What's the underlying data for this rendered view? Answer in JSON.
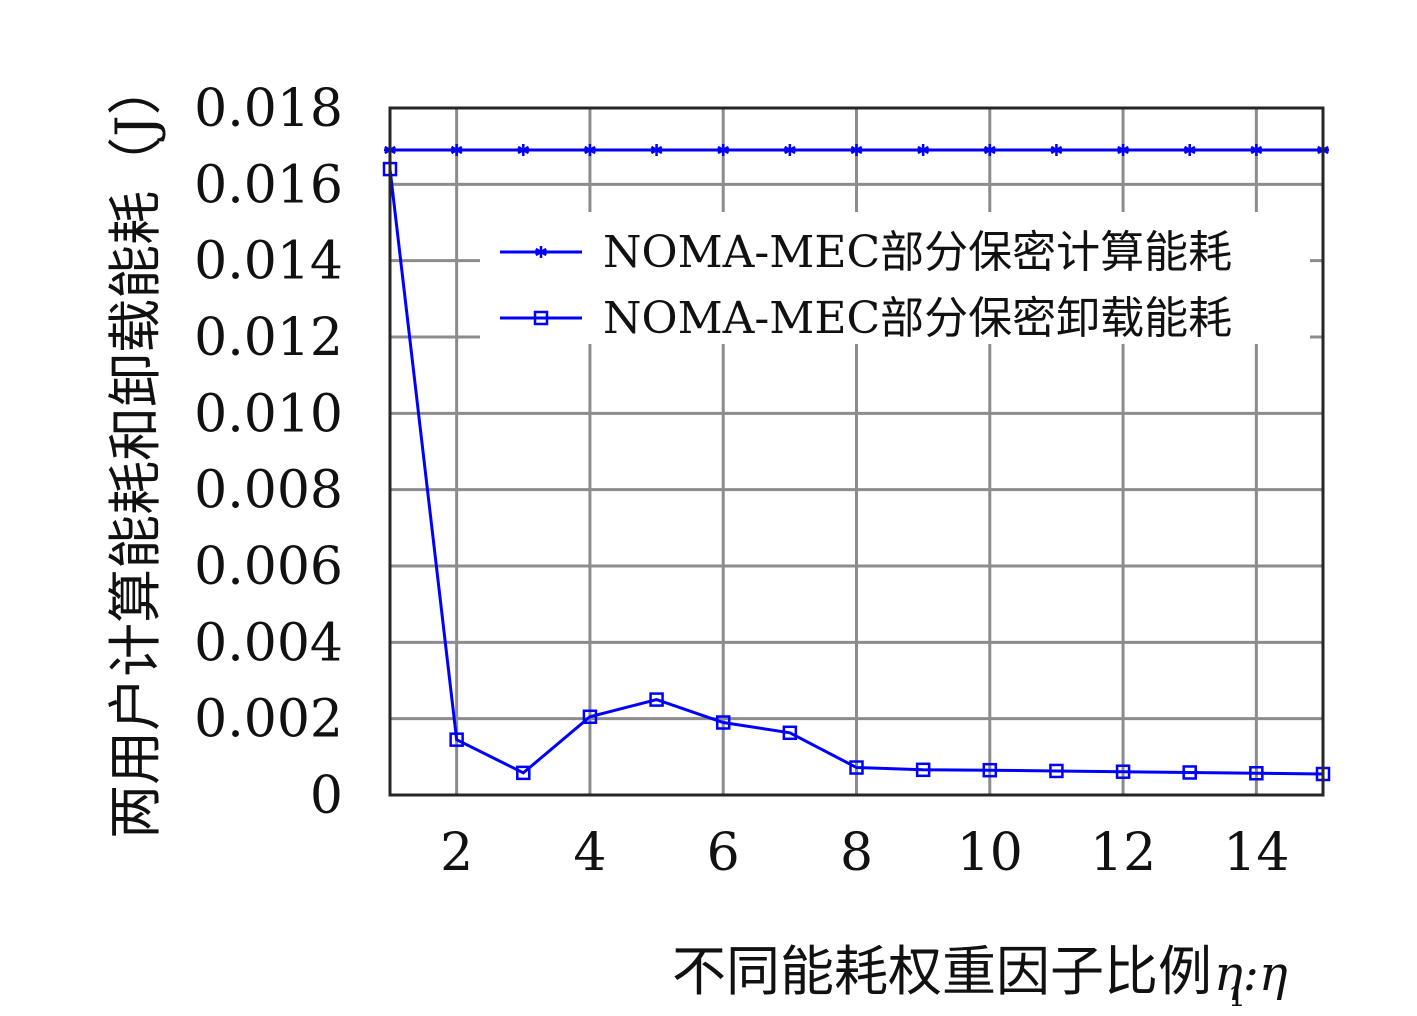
{
  "chart_data": {
    "type": "line",
    "x": [
      1,
      2,
      3,
      4,
      5,
      6,
      7,
      8,
      9,
      10,
      11,
      12,
      13,
      14,
      15
    ],
    "xticks": [
      "2",
      "4",
      "6",
      "8",
      "10",
      "12",
      "14"
    ],
    "yticks": [
      "0",
      "0.002",
      "0.004",
      "0.006",
      "0.008",
      "0.010",
      "0.012",
      "0.014",
      "0.016",
      "0.018"
    ],
    "xlim": [
      1,
      15
    ],
    "ylim": [
      0,
      0.018
    ],
    "xlabel": "不同能耗权重因子比例",
    "xlabel_math": "η:η",
    "xlabel_subscript": "1",
    "ylabel": "两用户计算能耗和卸载能耗（J）",
    "grid": true,
    "legend_position": "upper-right",
    "series": [
      {
        "name": "NOMA-MEC部分保密计算能耗",
        "marker": "asterisk",
        "color": "#0000ff",
        "values": [
          0.0169,
          0.0169,
          0.0169,
          0.0169,
          0.0169,
          0.0169,
          0.0169,
          0.0169,
          0.0169,
          0.0169,
          0.0169,
          0.0169,
          0.0169,
          0.0169,
          0.0169
        ]
      },
      {
        "name": "NOMA-MEC部分保密卸载能耗",
        "marker": "square",
        "color": "#0000ff",
        "values": [
          0.0164,
          0.00145,
          0.00058,
          0.00205,
          0.0025,
          0.0019,
          0.00163,
          0.00072,
          0.00066,
          0.00065,
          0.00063,
          0.00061,
          0.00059,
          0.00057,
          0.00055
        ]
      }
    ]
  }
}
